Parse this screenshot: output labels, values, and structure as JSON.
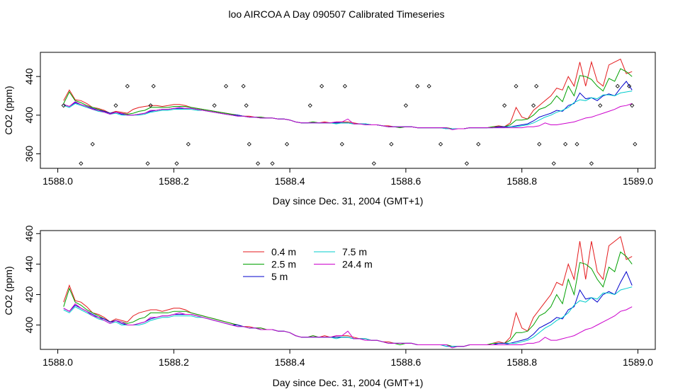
{
  "title": "loo AIRCOA A  Day 090507  Calibrated Timeseries",
  "chart_data": [
    {
      "type": "line",
      "xlabel": "Day since Dec. 31, 2004 (GMT+1)",
      "ylabel": "CO2 (ppm)",
      "xlim": [
        1587.97,
        1589.03
      ],
      "ylim": [
        345,
        465
      ],
      "xticks": [
        1588.0,
        1588.2,
        1588.4,
        1588.6,
        1588.8,
        1589.0
      ],
      "xtick_labels": [
        "1588.0",
        "1588.2",
        "1588.4",
        "1588.6",
        "1588.8",
        "1589.0"
      ],
      "yticks": [
        360,
        400,
        440
      ],
      "ytick_labels": [
        "360",
        "400",
        "440"
      ],
      "grid": false,
      "x": [
        1588.01,
        1588.02,
        1588.03,
        1588.04,
        1588.05,
        1588.06,
        1588.07,
        1588.08,
        1588.09,
        1588.1,
        1588.11,
        1588.12,
        1588.13,
        1588.14,
        1588.15,
        1588.16,
        1588.17,
        1588.18,
        1588.19,
        1588.2,
        1588.21,
        1588.22,
        1588.23,
        1588.24,
        1588.25,
        1588.26,
        1588.27,
        1588.28,
        1588.29,
        1588.3,
        1588.31,
        1588.32,
        1588.33,
        1588.34,
        1588.35,
        1588.36,
        1588.37,
        1588.38,
        1588.39,
        1588.4,
        1588.41,
        1588.42,
        1588.43,
        1588.44,
        1588.45,
        1588.46,
        1588.47,
        1588.48,
        1588.49,
        1588.5,
        1588.51,
        1588.52,
        1588.53,
        1588.54,
        1588.55,
        1588.56,
        1588.57,
        1588.58,
        1588.59,
        1588.6,
        1588.61,
        1588.62,
        1588.63,
        1588.64,
        1588.65,
        1588.66,
        1588.67,
        1588.68,
        1588.69,
        1588.7,
        1588.71,
        1588.72,
        1588.73,
        1588.74,
        1588.75,
        1588.76,
        1588.77,
        1588.78,
        1588.79,
        1588.8,
        1588.81,
        1588.82,
        1588.83,
        1588.84,
        1588.85,
        1588.86,
        1588.87,
        1588.88,
        1588.89,
        1588.9,
        1588.91,
        1588.92,
        1588.93,
        1588.94,
        1588.95,
        1588.96,
        1588.97,
        1588.98,
        1588.99
      ],
      "series": [
        {
          "color": "#e41a1c",
          "values": [
            415,
            426,
            416,
            415,
            412,
            408,
            407,
            405,
            402,
            404,
            403,
            402,
            406,
            408,
            409,
            410,
            410,
            409,
            410,
            411,
            411,
            410,
            408,
            407,
            406,
            405,
            404,
            403,
            402,
            401,
            400,
            399,
            399,
            398,
            398,
            397,
            397,
            396,
            396,
            395,
            393,
            392,
            392,
            393,
            392,
            393,
            392,
            393,
            393,
            393,
            392,
            391,
            391,
            390,
            390,
            389,
            389,
            388,
            388,
            388,
            388,
            387,
            387,
            387,
            387,
            387,
            387,
            386,
            386,
            386,
            387,
            387,
            387,
            387,
            388,
            389,
            388,
            392,
            408,
            398,
            396,
            405,
            410,
            415,
            420,
            428,
            426,
            440,
            430,
            455,
            430,
            455,
            435,
            430,
            452,
            455,
            458,
            443,
            445
          ]
        },
        {
          "color": "#00a000",
          "values": [
            412,
            424,
            415,
            413,
            410,
            408,
            406,
            404,
            402,
            403,
            402,
            401,
            402,
            404,
            405,
            408,
            408,
            408,
            408,
            409,
            409,
            409,
            408,
            407,
            406,
            405,
            404,
            403,
            402,
            401,
            400,
            399,
            398,
            398,
            398,
            397,
            397,
            396,
            396,
            395,
            393,
            392,
            392,
            393,
            392,
            392,
            392,
            392,
            392,
            392,
            391,
            391,
            391,
            390,
            390,
            389,
            388,
            388,
            387,
            388,
            388,
            387,
            387,
            387,
            387,
            387,
            387,
            386,
            386,
            386,
            387,
            387,
            387,
            387,
            388,
            388,
            388,
            390,
            395,
            395,
            396,
            400,
            406,
            408,
            412,
            420,
            414,
            430,
            420,
            441,
            440,
            437,
            430,
            425,
            438,
            435,
            448,
            445,
            440
          ]
        },
        {
          "color": "#0000cc",
          "values": [
            411,
            409,
            413,
            411,
            409,
            407,
            405,
            404,
            402,
            403,
            401,
            400,
            400,
            401,
            402,
            404,
            405,
            406,
            406,
            407,
            407,
            407,
            407,
            406,
            405,
            404,
            403,
            402,
            401,
            400,
            400,
            399,
            398,
            398,
            397,
            397,
            397,
            396,
            396,
            395,
            393,
            392,
            392,
            392,
            392,
            392,
            392,
            392,
            392,
            392,
            391,
            391,
            391,
            390,
            390,
            389,
            388,
            388,
            388,
            388,
            388,
            387,
            387,
            387,
            387,
            387,
            386,
            386,
            386,
            386,
            387,
            387,
            387,
            387,
            387,
            388,
            388,
            388,
            389,
            390,
            391,
            394,
            398,
            400,
            402,
            405,
            404,
            410,
            412,
            423,
            417,
            418,
            415,
            420,
            422,
            420,
            428,
            435,
            426
          ]
        },
        {
          "color": "#00cccc",
          "values": [
            410,
            408,
            412,
            410,
            408,
            406,
            404,
            403,
            401,
            402,
            400,
            400,
            400,
            400,
            401,
            403,
            404,
            405,
            405,
            406,
            406,
            406,
            406,
            405,
            405,
            404,
            403,
            402,
            401,
            400,
            399,
            399,
            398,
            398,
            397,
            397,
            397,
            396,
            396,
            395,
            393,
            392,
            392,
            392,
            392,
            392,
            392,
            391,
            392,
            392,
            391,
            391,
            391,
            390,
            390,
            389,
            388,
            388,
            388,
            388,
            388,
            387,
            387,
            387,
            387,
            387,
            386,
            386,
            386,
            386,
            387,
            387,
            387,
            387,
            387,
            387,
            387,
            388,
            388,
            389,
            390,
            392,
            395,
            398,
            400,
            403,
            405,
            408,
            413,
            416,
            415,
            418,
            417,
            421,
            421,
            420,
            423,
            424,
            425
          ]
        },
        {
          "color": "#cc00cc",
          "values": [
            411,
            409,
            414,
            411,
            409,
            406,
            405,
            403,
            401,
            403,
            402,
            400,
            400,
            401,
            402,
            405,
            405,
            406,
            406,
            407,
            408,
            407,
            407,
            406,
            405,
            404,
            403,
            402,
            401,
            400,
            399,
            399,
            398,
            398,
            397,
            397,
            397,
            396,
            396,
            395,
            393,
            392,
            392,
            392,
            392,
            392,
            392,
            393,
            393,
            396,
            391,
            391,
            390,
            390,
            390,
            389,
            388,
            388,
            388,
            388,
            388,
            387,
            387,
            387,
            387,
            387,
            387,
            385,
            386,
            386,
            387,
            387,
            387,
            387,
            387,
            387,
            387,
            387,
            387,
            387,
            388,
            388,
            389,
            392,
            390,
            390,
            391,
            392,
            393,
            395,
            397,
            398,
            400,
            402,
            404,
            406,
            409,
            410,
            412
          ]
        }
      ],
      "markers": {
        "x": [
          1588.01,
          1588.04,
          1588.06,
          1588.1,
          1588.12,
          1588.155,
          1588.16,
          1588.165,
          1588.205,
          1588.225,
          1588.27,
          1588.29,
          1588.32,
          1588.325,
          1588.33,
          1588.345,
          1588.37,
          1588.395,
          1588.435,
          1588.455,
          1588.49,
          1588.495,
          1588.545,
          1588.575,
          1588.6,
          1588.62,
          1588.64,
          1588.66,
          1588.705,
          1588.725,
          1588.77,
          1588.79,
          1588.82,
          1588.825,
          1588.83,
          1588.855,
          1588.875,
          1588.895,
          1588.92,
          1588.935,
          1588.965,
          1588.985,
          1588.99,
          1588.995
        ],
        "y": [
          410,
          350,
          370,
          410,
          430,
          350,
          410,
          430,
          350,
          370,
          410,
          430,
          430,
          410,
          370,
          350,
          350,
          370,
          410,
          430,
          370,
          430,
          350,
          370,
          410,
          430,
          430,
          370,
          350,
          370,
          410,
          430,
          410,
          430,
          370,
          350,
          370,
          370,
          350,
          410,
          430,
          430,
          410,
          370
        ]
      }
    },
    {
      "type": "line",
      "xlabel": "Day since Dec. 31, 2004 (GMT+1)",
      "ylabel": "CO2 (ppm)",
      "xlim": [
        1587.97,
        1589.03
      ],
      "ylim": [
        384,
        462
      ],
      "xticks": [
        1588.0,
        1588.2,
        1588.4,
        1588.6,
        1588.8,
        1589.0
      ],
      "xtick_labels": [
        "1588.0",
        "1588.2",
        "1588.4",
        "1588.6",
        "1588.8",
        "1589.0"
      ],
      "yticks": [
        400,
        420,
        440,
        460
      ],
      "ytick_labels": [
        "400",
        "420",
        "440",
        "460"
      ],
      "grid": false,
      "legend": {
        "position": "top-center",
        "entries": [
          {
            "label": "0.4 m",
            "color": "#e41a1c"
          },
          {
            "label": "2.5 m",
            "color": "#00a000"
          },
          {
            "label": "5 m",
            "color": "#0000cc"
          },
          {
            "label": "7.5 m",
            "color": "#00cccc"
          },
          {
            "label": "24.4 m",
            "color": "#cc00cc"
          }
        ]
      },
      "series": [
        {
          "name": "0.4 m",
          "color": "#e41a1c"
        },
        {
          "name": "2.5 m",
          "color": "#00a000"
        },
        {
          "name": "5 m",
          "color": "#0000cc"
        },
        {
          "name": "7.5 m",
          "color": "#00cccc"
        },
        {
          "name": "24.4 m",
          "color": "#cc00cc"
        }
      ]
    }
  ]
}
